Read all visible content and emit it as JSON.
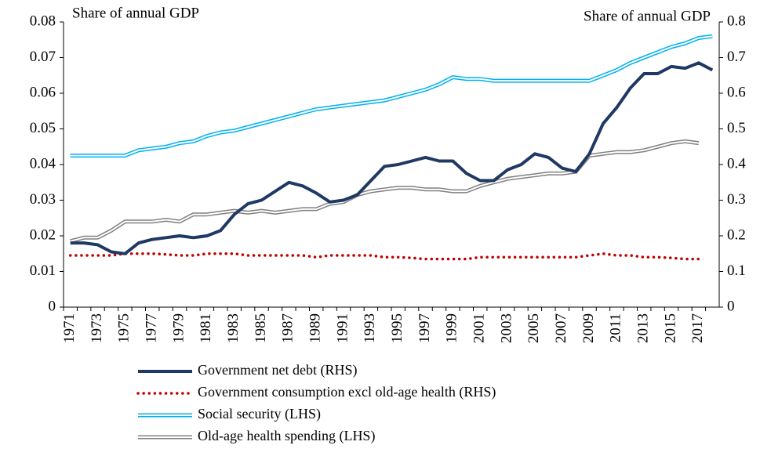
{
  "chart_data": {
    "type": "line",
    "y_label": "Share of annual GDP",
    "y2_label": "Share of annual GDP",
    "categories": [
      "1971",
      null,
      "1973",
      null,
      "1975",
      null,
      "1977",
      null,
      "1979",
      null,
      "1981",
      null,
      "1983",
      null,
      "1985",
      null,
      "1987",
      null,
      "1989",
      null,
      "1991",
      null,
      "1993",
      null,
      "1995",
      null,
      "1997",
      null,
      "1999",
      null,
      "2001",
      null,
      "2003",
      null,
      "2005",
      null,
      "2007",
      null,
      "2009",
      null,
      "2011",
      null,
      "2013",
      null,
      "2015",
      null,
      "2017",
      null
    ],
    "ylim": [
      0,
      0.08
    ],
    "yticks": [
      0,
      0.01,
      0.02,
      0.03,
      0.04,
      0.05,
      0.06,
      0.07,
      0.08
    ],
    "y2lim": [
      0,
      0.8
    ],
    "y2ticks": [
      0,
      0.1,
      0.2,
      0.3,
      0.4,
      0.5,
      0.6,
      0.7,
      0.8
    ],
    "series": [
      {
        "name": "Government net debt (RHS)",
        "color": "#1f3864",
        "line_style": "solid",
        "axis": "y2",
        "values": [
          0.18,
          0.18,
          0.175,
          0.155,
          0.15,
          0.18,
          0.19,
          0.195,
          0.2,
          0.195,
          0.2,
          0.215,
          0.26,
          0.29,
          0.3,
          0.325,
          0.35,
          0.34,
          0.32,
          0.295,
          0.3,
          0.315,
          0.355,
          0.395,
          0.4,
          0.41,
          0.42,
          0.41,
          0.41,
          0.375,
          0.355,
          0.355,
          0.385,
          0.4,
          0.43,
          0.42,
          0.39,
          0.38,
          0.43,
          0.515,
          0.56,
          0.615,
          0.655,
          0.655,
          0.675,
          0.67,
          0.685,
          0.665
        ]
      },
      {
        "name": "Government consumption excl old-age health (RHS)",
        "color": "#c00000",
        "line_style": "dotted",
        "axis": "y2",
        "values": [
          0.145,
          0.145,
          0.145,
          0.145,
          0.15,
          0.15,
          0.15,
          0.148,
          0.145,
          0.145,
          0.15,
          0.15,
          0.15,
          0.145,
          0.145,
          0.145,
          0.145,
          0.145,
          0.14,
          0.145,
          0.145,
          0.145,
          0.145,
          0.14,
          0.14,
          0.138,
          0.135,
          0.135,
          0.135,
          0.135,
          0.14,
          0.14,
          0.14,
          0.14,
          0.14,
          0.14,
          0.14,
          0.14,
          0.145,
          0.15,
          0.145,
          0.145,
          0.14,
          0.14,
          0.138,
          0.135,
          0.135,
          null
        ]
      },
      {
        "name": "Social security (LHS)",
        "color": "#00b0f0",
        "line_style": "double",
        "values": [
          0.0425,
          0.0425,
          0.0425,
          0.0425,
          0.0425,
          0.044,
          0.0445,
          0.045,
          0.046,
          0.0465,
          0.048,
          0.049,
          0.0495,
          0.0505,
          0.0515,
          0.0525,
          0.0535,
          0.0545,
          0.0555,
          0.056,
          0.0565,
          0.057,
          0.0575,
          0.058,
          0.059,
          0.06,
          0.061,
          0.0625,
          0.0645,
          0.064,
          0.064,
          0.0635,
          0.0635,
          0.0635,
          0.0635,
          0.0635,
          0.0635,
          0.0635,
          0.0635,
          0.065,
          0.0665,
          0.0685,
          0.07,
          0.0715,
          0.073,
          0.074,
          0.0755,
          0.076
        ]
      },
      {
        "name": "Old-age health spending (LHS)",
        "color": "#808080",
        "line_style": "double",
        "values": [
          0.0185,
          0.0195,
          0.0195,
          0.0215,
          0.024,
          0.024,
          0.024,
          0.0245,
          0.024,
          0.026,
          0.026,
          0.0265,
          0.027,
          0.0265,
          0.027,
          0.0265,
          0.027,
          0.0275,
          0.0275,
          0.029,
          0.0295,
          0.0315,
          0.0325,
          0.033,
          0.0335,
          0.0335,
          0.033,
          0.033,
          0.0325,
          0.0325,
          0.034,
          0.035,
          0.036,
          0.0365,
          0.037,
          0.0375,
          0.0375,
          0.038,
          0.0425,
          0.043,
          0.0435,
          0.0435,
          0.044,
          0.045,
          0.046,
          0.0465,
          0.046,
          null
        ]
      }
    ]
  }
}
